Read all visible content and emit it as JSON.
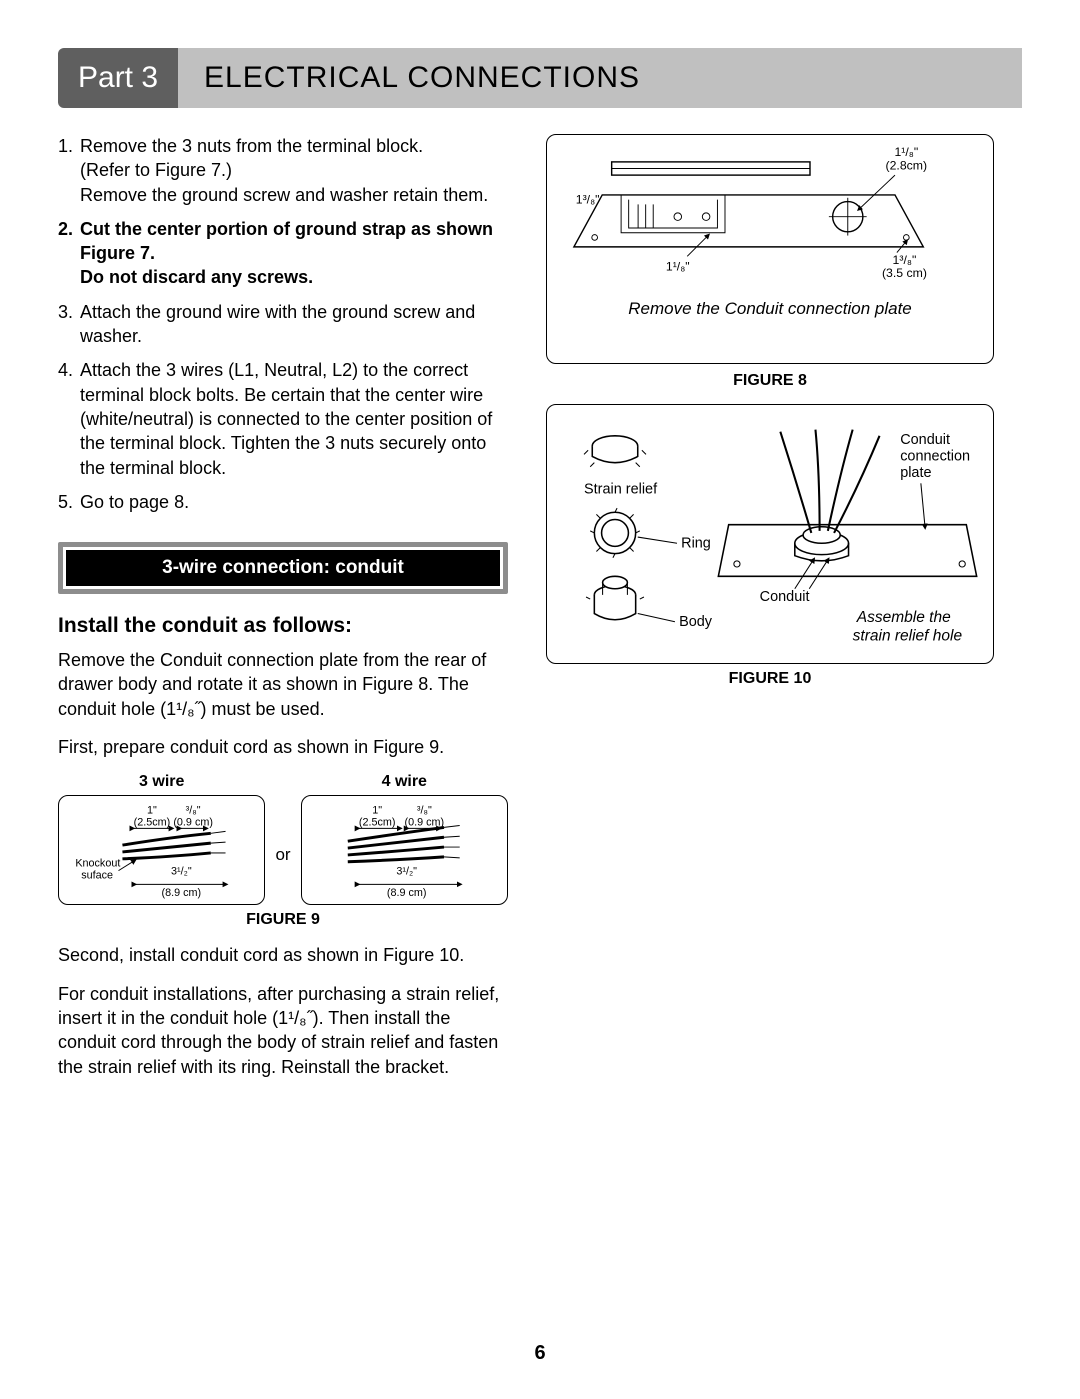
{
  "header": {
    "part": "Part 3",
    "title": "ELECTRICAL CONNECTIONS"
  },
  "steps": [
    {
      "num": "1.",
      "text": "Remove the 3 nuts from the terminal block.\n(Refer to Figure 7.)\nRemove the ground screw and washer retain them.",
      "bold": false
    },
    {
      "num": "2.",
      "text": "Cut the center portion of ground strap as shown Figure 7.\nDo not discard any screws.",
      "bold": true
    },
    {
      "num": "3.",
      "text": "Attach the ground wire with the ground screw and washer.",
      "bold": false
    },
    {
      "num": "4.",
      "text": "Attach the 3 wires (L1, Neutral, L2) to the correct terminal block bolts. Be certain that the center wire (white/neutral) is connected to the center position of the terminal block. Tighten the 3 nuts securely onto the terminal block.",
      "bold": false
    },
    {
      "num": "5.",
      "text": "Go to page 8.",
      "bold": false
    }
  ],
  "banner": "3-wire connection: conduit",
  "subhead": "Install the conduit as follows:",
  "para1": "Remove the Conduit connection plate from the rear of drawer body and rotate it as shown in Figure 8. The conduit hole (1¹/₈˝) must be used.",
  "para2": "First, prepare conduit cord as shown in Figure 9.",
  "wire3_label": "3 wire",
  "wire4_label": "4 wire",
  "or": "or",
  "fig9_caption": "FIGURE 9",
  "para3": "Second, install conduit cord as shown in Figure 10.",
  "para4": "For conduit installations, after purchasing a strain relief, insert it in the conduit hole (1¹/₈˝). Then install the conduit cord through the body of strain relief and fasten the strain relief with its ring. Reinstall the bracket.",
  "fig8": {
    "caption": "FIGURE 8",
    "inner_caption": "Remove the Conduit connection plate",
    "dim_a": "1¹/₈\"",
    "dim_a_cm": "(2.8cm)",
    "dim_b": "1³/₈\"",
    "dim_c": "1¹/₈\"",
    "dim_d": "1³/₈\"",
    "dim_d_cm": "(3.5 cm)"
  },
  "fig10": {
    "caption": "FIGURE 10",
    "lbl_strain": "Strain relief",
    "lbl_ring": "Ring",
    "lbl_body": "Body",
    "lbl_conduit": "Conduit",
    "lbl_plate": "Conduit\nconnection\nplate",
    "inner_caption": "Assemble the\nstrain relief hole"
  },
  "wirebox": {
    "one_in": "1\"",
    "one_cm": "(2.5cm)",
    "three8": "³/₈\"",
    "three8_cm": "(0.9 cm)",
    "three_half": "3¹/₂\"",
    "three_half_cm": "(8.9 cm)",
    "knockout": "Knockout\nsuface"
  },
  "page_number": "6",
  "colors": {
    "part_bg": "#5f5f5f",
    "title_bg": "#c0c0c0",
    "banner_border": "#8d8d8d"
  }
}
